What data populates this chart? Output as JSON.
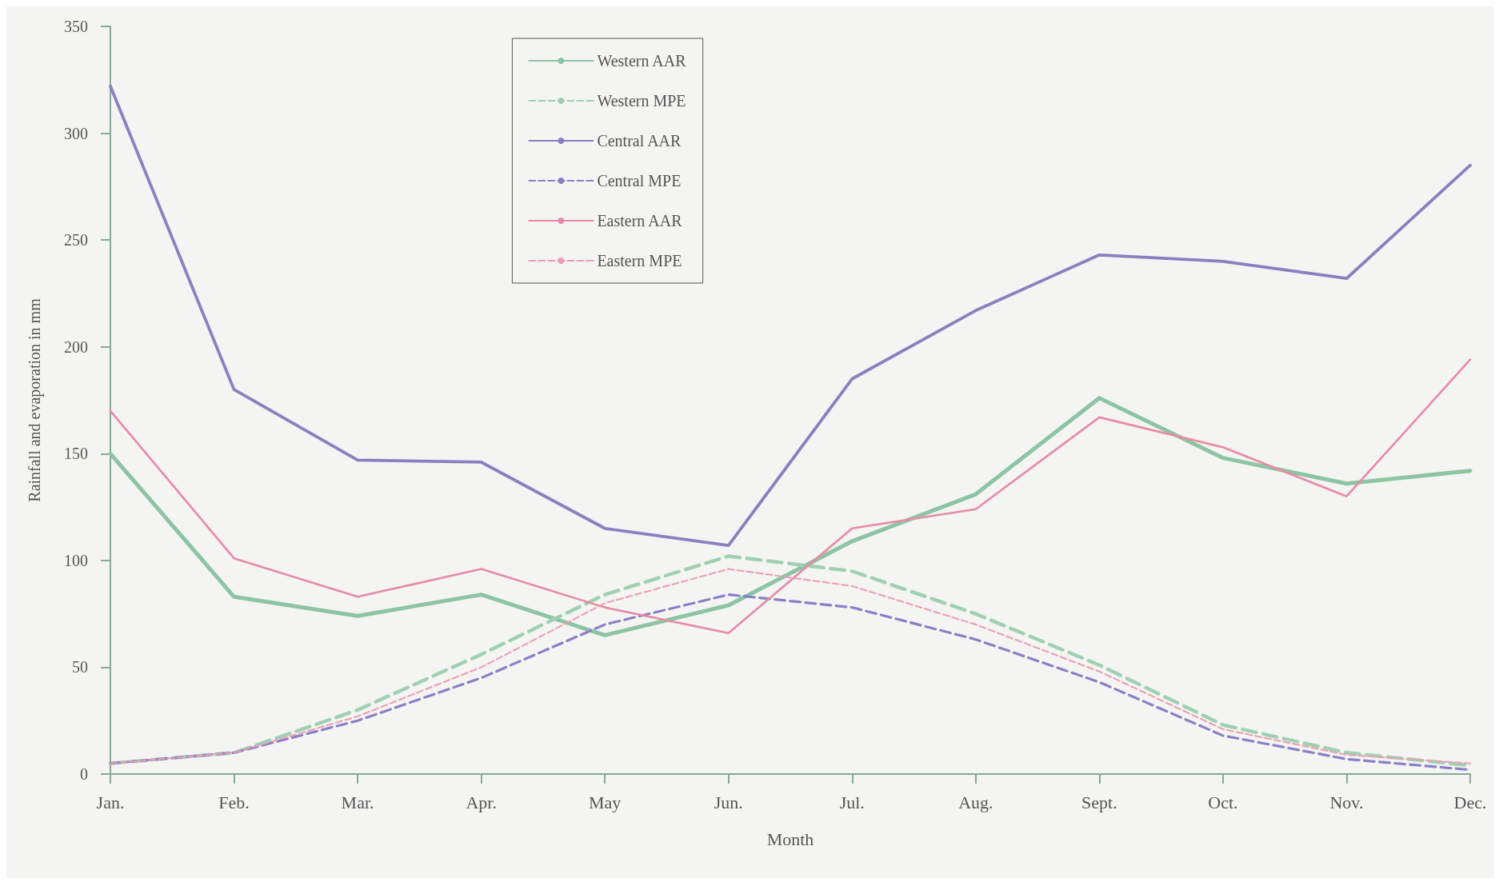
{
  "chart_data": {
    "type": "line",
    "xlabel": "Month",
    "ylabel": "Rainfall and evaporation in mm",
    "categories": [
      "Jan.",
      "Feb.",
      "Mar.",
      "Apr.",
      "May",
      "Jun.",
      "Jul.",
      "Aug.",
      "Sept.",
      "Oct.",
      "Nov.",
      "Dec."
    ],
    "ylim": [
      0,
      350
    ],
    "yticks": [
      0,
      50,
      100,
      150,
      200,
      250,
      300,
      350
    ],
    "grid": false,
    "legend": "top",
    "marker": "none",
    "series": [
      {
        "name": "Western AAR",
        "color": "#8cc4a4",
        "line_style": "solid",
        "values": [
          150,
          83,
          74,
          84,
          65,
          79,
          109,
          131,
          176,
          148,
          136,
          142
        ]
      },
      {
        "name": "Western MPE",
        "color": "#9fd0b4",
        "line_style": "dashed",
        "values": [
          5,
          10,
          30,
          56,
          84,
          102,
          95,
          75,
          51,
          23,
          10,
          4
        ]
      },
      {
        "name": "Central AAR",
        "color": "#8a80c0",
        "line_style": "solid",
        "values": [
          322,
          180,
          147,
          146,
          115,
          107,
          185,
          217,
          243,
          240,
          232,
          285
        ]
      },
      {
        "name": "Central MPE",
        "color": "#8a80c8",
        "line_style": "dashed",
        "values": [
          5,
          10,
          25,
          45,
          70,
          84,
          78,
          63,
          43,
          18,
          7,
          2
        ]
      },
      {
        "name": "Eastern AAR",
        "color": "#e88aa2",
        "line_style": "solid",
        "values": [
          170,
          101,
          83,
          96,
          78,
          66,
          115,
          124,
          167,
          153,
          130,
          194
        ]
      },
      {
        "name": "Eastern MPE",
        "color": "#eb9cb0",
        "line_style": "dashed",
        "values": [
          5,
          10,
          27,
          50,
          80,
          96,
          88,
          70,
          48,
          21,
          9,
          5
        ]
      }
    ]
  }
}
